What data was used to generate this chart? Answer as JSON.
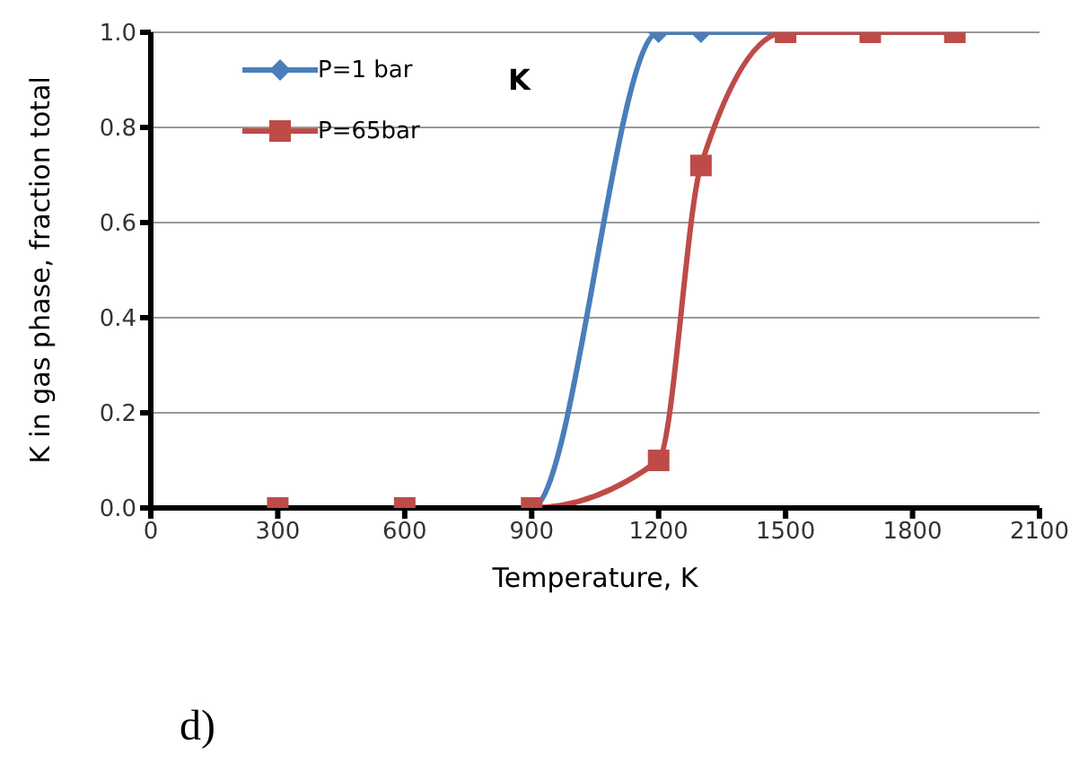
{
  "chart_data": {
    "type": "line",
    "xlabel": "Temperature, K",
    "ylabel": "K in gas phase, fraction total",
    "annotations": [
      "K",
      "d)"
    ],
    "xlim": [
      0,
      2100
    ],
    "xticks": [
      0,
      300,
      600,
      900,
      1200,
      1500,
      1800,
      2100
    ],
    "ylim": [
      0,
      1
    ],
    "yticks": [
      {
        "value": 0,
        "label": "0.0"
      },
      {
        "value": 0.2,
        "label": "0.2"
      },
      {
        "value": 0.4,
        "label": "0.4"
      },
      {
        "value": 0.6,
        "label": "0.6"
      },
      {
        "value": 0.8,
        "label": "0.8"
      },
      {
        "value": 1,
        "label": "1.0"
      }
    ],
    "grid": "y",
    "legend": "top left",
    "series": [
      {
        "name": "P=1 bar",
        "color": "#4a7ebb",
        "marker": "diamond",
        "x": [
          300,
          600,
          900,
          1200,
          1300,
          1500,
          1700,
          1900
        ],
        "values": [
          0,
          0,
          0,
          1,
          1,
          1,
          1,
          1
        ]
      },
      {
        "name": "P=65bar",
        "color": "#be4b48",
        "marker": "square",
        "x": [
          300,
          600,
          900,
          1200,
          1300,
          1500,
          1700,
          1900
        ],
        "values": [
          0,
          0,
          0,
          0.1,
          0.72,
          1,
          1,
          1
        ]
      }
    ]
  }
}
